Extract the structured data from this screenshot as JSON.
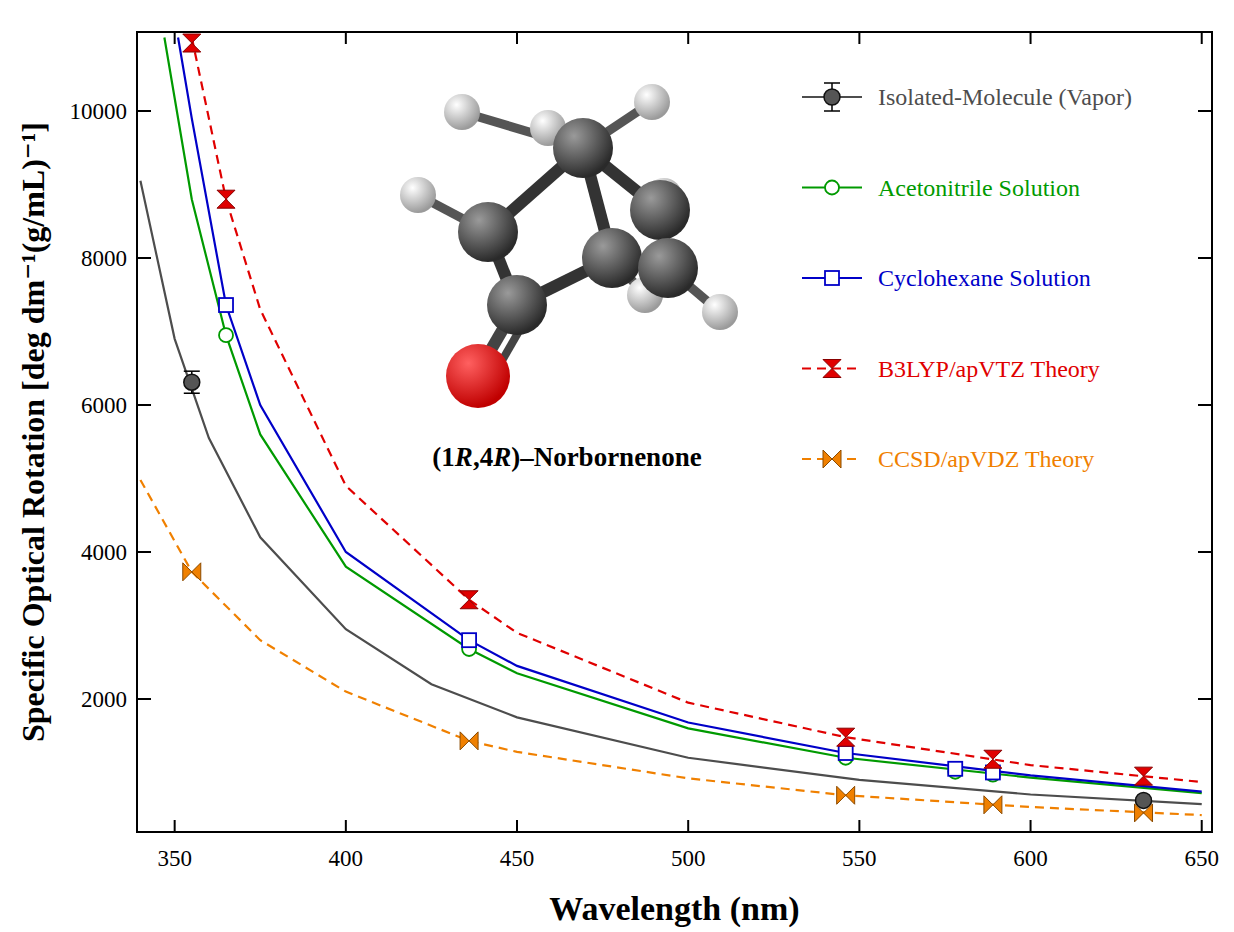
{
  "chart_data": {
    "type": "line",
    "x_label": "Wavelength (nm)",
    "y_label": "Specific Optical Rotation [deg dm⁻¹(g/mL)⁻¹]",
    "molecule_label": "(1R,4R)–Norbornenone",
    "xlim": [
      339,
      653
    ],
    "ylim": [
      190,
      11075
    ],
    "xticks": [
      350,
      400,
      450,
      500,
      550,
      600,
      650
    ],
    "yticks": [
      2000,
      4000,
      6000,
      8000,
      10000
    ],
    "legend": "upper right",
    "grid": false,
    "series": [
      {
        "name": "Isolated-Molecule (Vapor)",
        "color": "#4d4d4d",
        "marker": "circle-filled",
        "line_style": "solid",
        "x": [
          355,
          633
        ],
        "values": [
          6310,
          620
        ],
        "errors": [
          150,
          30
        ],
        "fit": {
          "x": [
            340,
            350,
            360,
            375,
            400,
            425,
            450,
            500,
            550,
            600,
            650
          ],
          "values": [
            9050,
            6900,
            5550,
            4200,
            2950,
            2200,
            1750,
            1200,
            900,
            700,
            570
          ]
        }
      },
      {
        "name": "Acetonitrile Solution",
        "color": "#009a00",
        "marker": "circle-open",
        "line_style": "solid",
        "x": [
          365,
          436,
          546,
          578,
          589
        ],
        "values": [
          6950,
          2680,
          1200,
          1010,
          970
        ],
        "fit": {
          "x": [
            347,
            355,
            365,
            375,
            400,
            436,
            450,
            500,
            546,
            600,
            650
          ],
          "values": [
            11000,
            8800,
            6950,
            5600,
            3800,
            2680,
            2350,
            1600,
            1200,
            930,
            720
          ]
        }
      },
      {
        "name": "Cyclohexane Solution",
        "color": "#0000c8",
        "marker": "square-open",
        "line_style": "solid",
        "x": [
          365,
          436,
          546,
          578,
          589
        ],
        "values": [
          7360,
          2800,
          1265,
          1050,
          1000
        ],
        "fit": {
          "x": [
            351,
            355,
            365,
            375,
            400,
            436,
            450,
            500,
            546,
            600,
            650
          ],
          "values": [
            11000,
            9900,
            7360,
            6000,
            4000,
            2800,
            2450,
            1680,
            1265,
            960,
            740
          ]
        }
      },
      {
        "name": "B3LYP/apVTZ Theory",
        "color": "#e00000",
        "marker": "hourglass",
        "line_style": "dashed",
        "x": [
          355,
          365,
          436,
          546,
          589,
          633
        ],
        "values": [
          10925,
          8800,
          3350,
          1480,
          1180,
          950
        ],
        "fit": {
          "x": [
            355,
            365,
            375,
            400,
            436,
            450,
            500,
            546,
            600,
            650
          ],
          "values": [
            11000,
            8800,
            7300,
            4900,
            3350,
            2900,
            1950,
            1480,
            1100,
            870
          ]
        }
      },
      {
        "name": "CCSD/apVDZ Theory",
        "color": "#f08000",
        "marker": "bowtie",
        "line_style": "dashed",
        "x": [
          355,
          436,
          546,
          589,
          633
        ],
        "values": [
          3730,
          1430,
          690,
          560,
          450
        ],
        "fit": {
          "x": [
            340,
            355,
            375,
            400,
            436,
            450,
            500,
            546,
            600,
            650
          ],
          "values": [
            4980,
            3730,
            2800,
            2100,
            1430,
            1280,
            920,
            690,
            530,
            420
          ]
        }
      }
    ]
  }
}
